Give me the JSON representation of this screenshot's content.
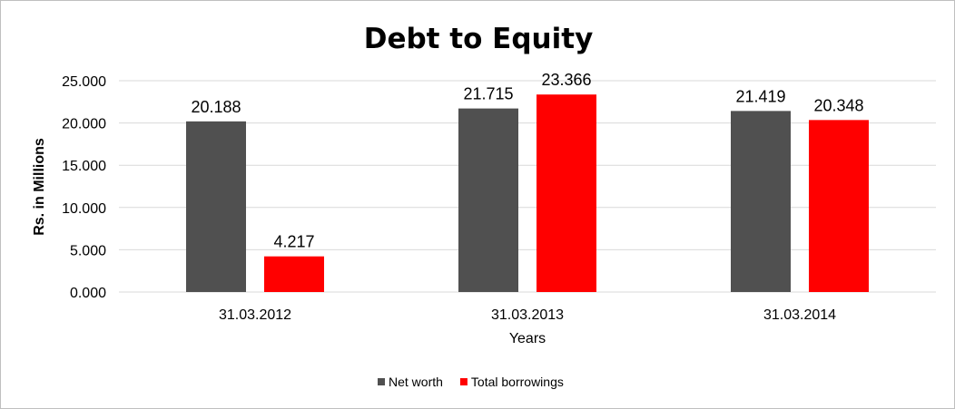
{
  "chart_data": {
    "type": "bar",
    "title": "Debt to Equity",
    "xlabel": "Years",
    "ylabel": "Rs. in Millions",
    "categories": [
      "31.03.2012",
      "31.03.2013",
      "31.03.2014"
    ],
    "series": [
      {
        "name": "Net worth",
        "values": [
          20.188,
          21.715,
          21.419
        ],
        "labels": [
          "20.188",
          "21.715",
          "21.419"
        ],
        "color": "#505050"
      },
      {
        "name": "Total borrowings",
        "values": [
          4.217,
          23.366,
          20.348
        ],
        "labels": [
          "4.217",
          "23.366",
          "20.348"
        ],
        "color": "#ff0000"
      }
    ],
    "ylim": [
      0,
      25
    ],
    "yticks": [
      0,
      5,
      10,
      15,
      20,
      25
    ],
    "ytick_labels": [
      "0.000",
      "5.000",
      "10.000",
      "15.000",
      "20.000",
      "25.000"
    ],
    "grid": true,
    "gridline_color": "#d9d9d9",
    "legend_position": "bottom"
  }
}
